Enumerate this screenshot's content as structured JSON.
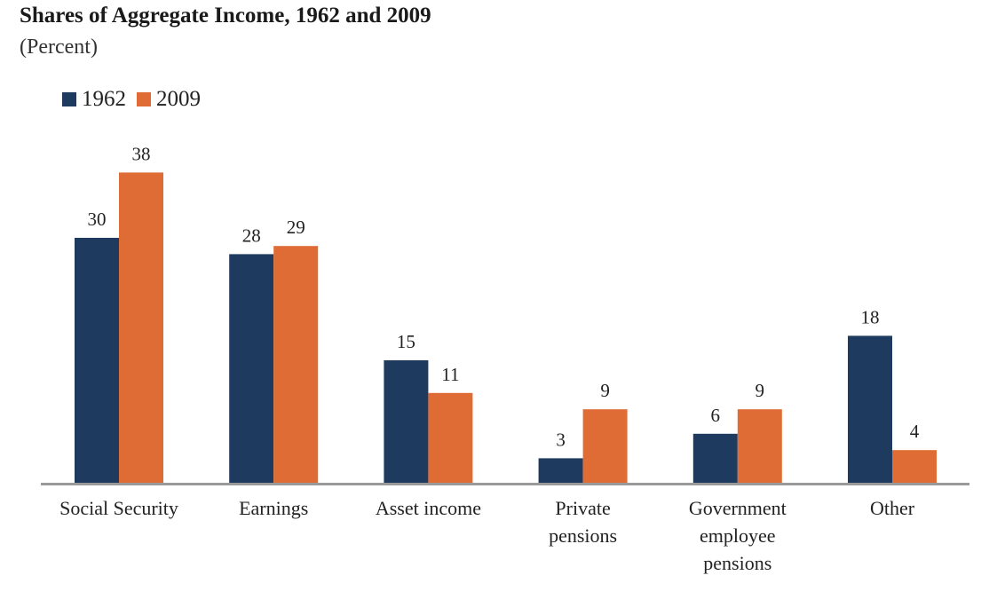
{
  "chart_data": {
    "type": "bar",
    "title": "Shares of Aggregate Income, 1962 and 2009",
    "subtitle": "(Percent)",
    "categories": [
      "Social Security",
      "Earnings",
      "Asset income",
      "Private pensions",
      "Government employee pensions",
      "Other"
    ],
    "category_lines": [
      [
        "Social Security"
      ],
      [
        "Earnings"
      ],
      [
        "Asset income"
      ],
      [
        "Private",
        "pensions"
      ],
      [
        "Government",
        "employee",
        "pensions"
      ],
      [
        "Other"
      ]
    ],
    "series": [
      {
        "name": "1962",
        "color": "#1f3a5f",
        "values": [
          30,
          28,
          15,
          3,
          6,
          18
        ]
      },
      {
        "name": "2009",
        "color": "#e06c35",
        "values": [
          38,
          29,
          11,
          9,
          9,
          4
        ]
      }
    ],
    "ylim": [
      0,
      40
    ],
    "grid": false,
    "legend_position": "top-left",
    "data_labels": true
  }
}
